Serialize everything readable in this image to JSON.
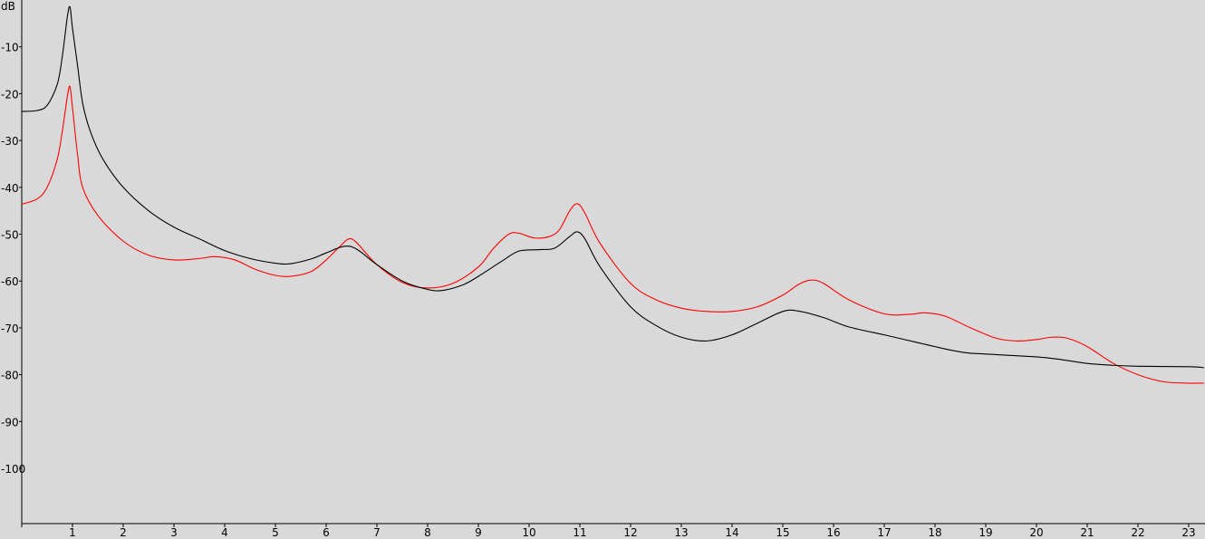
{
  "chart_data": {
    "type": "line",
    "ylabel": "dB",
    "xlim": [
      0,
      23.3
    ],
    "ylim": [
      -110,
      0
    ],
    "x_ticks": [
      1,
      2,
      3,
      4,
      5,
      6,
      7,
      8,
      9,
      10,
      11,
      12,
      13,
      14,
      15,
      16,
      17,
      18,
      19,
      20,
      21,
      22,
      23
    ],
    "y_ticks": [
      -10,
      -20,
      -30,
      -40,
      -50,
      -60,
      -70,
      -80,
      -90,
      -100
    ],
    "grid": false,
    "background_color": "#d9d9d9",
    "series": [
      {
        "color": "#000000",
        "points": [
          [
            0.0,
            -23.8
          ],
          [
            0.3,
            -23.6
          ],
          [
            0.5,
            -22.5
          ],
          [
            0.7,
            -18
          ],
          [
            0.8,
            -12
          ],
          [
            0.9,
            -3.5
          ],
          [
            0.95,
            -1.5
          ],
          [
            1.0,
            -6
          ],
          [
            1.1,
            -14
          ],
          [
            1.2,
            -22
          ],
          [
            1.35,
            -28
          ],
          [
            1.6,
            -34
          ],
          [
            2.0,
            -40
          ],
          [
            2.5,
            -45
          ],
          [
            3.0,
            -48.5
          ],
          [
            3.5,
            -51
          ],
          [
            4.0,
            -53.5
          ],
          [
            4.5,
            -55.2
          ],
          [
            5.0,
            -56.2
          ],
          [
            5.3,
            -56.3
          ],
          [
            5.7,
            -55.3
          ],
          [
            6.0,
            -54
          ],
          [
            6.35,
            -52.6
          ],
          [
            6.6,
            -53.2
          ],
          [
            7.0,
            -56.5
          ],
          [
            7.5,
            -60
          ],
          [
            8.0,
            -61.8
          ],
          [
            8.3,
            -62
          ],
          [
            8.7,
            -60.8
          ],
          [
            9.0,
            -59
          ],
          [
            9.5,
            -55.5
          ],
          [
            9.8,
            -53.6
          ],
          [
            10.2,
            -53.3
          ],
          [
            10.5,
            -53
          ],
          [
            10.8,
            -50.5
          ],
          [
            10.95,
            -49.5
          ],
          [
            11.1,
            -51
          ],
          [
            11.4,
            -57
          ],
          [
            12.0,
            -65.5
          ],
          [
            12.5,
            -69.5
          ],
          [
            13.0,
            -72
          ],
          [
            13.5,
            -72.8
          ],
          [
            14.0,
            -71.5
          ],
          [
            14.5,
            -69
          ],
          [
            15.0,
            -66.5
          ],
          [
            15.3,
            -66.4
          ],
          [
            15.8,
            -67.8
          ],
          [
            16.3,
            -69.8
          ],
          [
            17.0,
            -71.5
          ],
          [
            17.6,
            -73
          ],
          [
            18.2,
            -74.5
          ],
          [
            18.6,
            -75.3
          ],
          [
            19.0,
            -75.6
          ],
          [
            20.0,
            -76.2
          ],
          [
            20.5,
            -76.8
          ],
          [
            21.0,
            -77.6
          ],
          [
            21.5,
            -78
          ],
          [
            22.0,
            -78.2
          ],
          [
            23.0,
            -78.3
          ],
          [
            23.3,
            -78.5
          ]
        ]
      },
      {
        "color": "#ff0000",
        "points": [
          [
            0.0,
            -43.6
          ],
          [
            0.3,
            -42.5
          ],
          [
            0.5,
            -40
          ],
          [
            0.7,
            -34
          ],
          [
            0.8,
            -28
          ],
          [
            0.9,
            -20.5
          ],
          [
            0.95,
            -18.5
          ],
          [
            1.0,
            -23
          ],
          [
            1.1,
            -33
          ],
          [
            1.2,
            -40
          ],
          [
            1.5,
            -46
          ],
          [
            2.0,
            -51.5
          ],
          [
            2.5,
            -54.5
          ],
          [
            3.0,
            -55.5
          ],
          [
            3.5,
            -55.2
          ],
          [
            3.8,
            -54.8
          ],
          [
            4.2,
            -55.5
          ],
          [
            4.6,
            -57.5
          ],
          [
            5.0,
            -58.8
          ],
          [
            5.3,
            -59
          ],
          [
            5.7,
            -58
          ],
          [
            6.0,
            -55.5
          ],
          [
            6.3,
            -52.3
          ],
          [
            6.45,
            -51
          ],
          [
            6.6,
            -51.8
          ],
          [
            7.0,
            -56.5
          ],
          [
            7.5,
            -60.3
          ],
          [
            8.0,
            -61.5
          ],
          [
            8.5,
            -60.5
          ],
          [
            9.0,
            -57
          ],
          [
            9.3,
            -53
          ],
          [
            9.6,
            -50
          ],
          [
            9.8,
            -49.8
          ],
          [
            10.1,
            -50.8
          ],
          [
            10.4,
            -50.5
          ],
          [
            10.6,
            -49
          ],
          [
            10.8,
            -45
          ],
          [
            10.95,
            -43.5
          ],
          [
            11.1,
            -45.5
          ],
          [
            11.4,
            -52
          ],
          [
            12.0,
            -60.5
          ],
          [
            12.5,
            -64
          ],
          [
            13.0,
            -65.8
          ],
          [
            13.5,
            -66.5
          ],
          [
            14.0,
            -66.5
          ],
          [
            14.5,
            -65.5
          ],
          [
            15.0,
            -63
          ],
          [
            15.3,
            -60.8
          ],
          [
            15.55,
            -59.8
          ],
          [
            15.8,
            -60.5
          ],
          [
            16.3,
            -64
          ],
          [
            17.0,
            -67
          ],
          [
            17.5,
            -67.1
          ],
          [
            17.8,
            -66.8
          ],
          [
            18.2,
            -67.5
          ],
          [
            18.7,
            -70
          ],
          [
            19.2,
            -72.2
          ],
          [
            19.6,
            -72.8
          ],
          [
            20.0,
            -72.5
          ],
          [
            20.3,
            -72
          ],
          [
            20.6,
            -72.2
          ],
          [
            21.0,
            -74
          ],
          [
            21.5,
            -77.5
          ],
          [
            22.0,
            -80
          ],
          [
            22.5,
            -81.5
          ],
          [
            23.0,
            -81.8
          ],
          [
            23.3,
            -81.8
          ]
        ]
      }
    ]
  }
}
